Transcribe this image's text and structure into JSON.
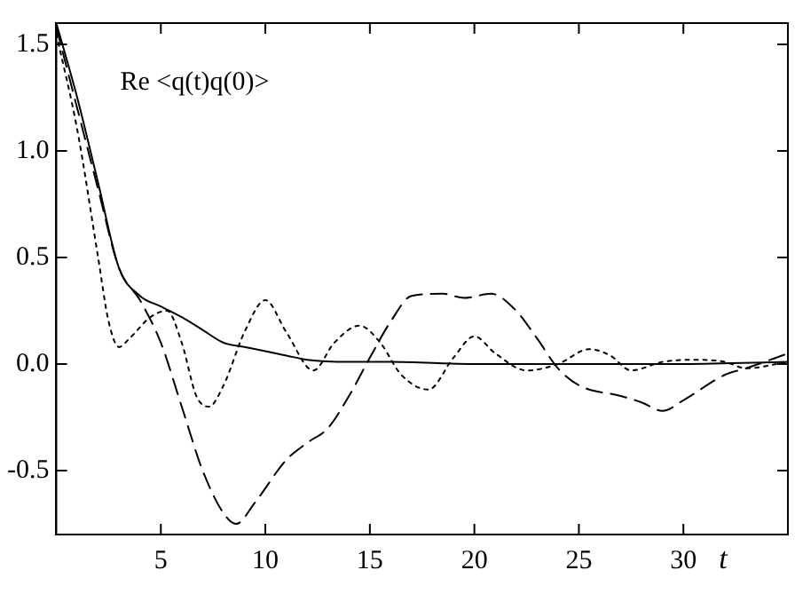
{
  "chart_data": {
    "type": "line",
    "xlabel": "t",
    "annotations": [
      "Re <q(t)q(0)>"
    ],
    "xlim": [
      0,
      35
    ],
    "xticks": [
      5,
      10,
      15,
      20,
      25,
      30
    ],
    "ylim": [
      -0.8,
      1.6
    ],
    "yticks": [
      -0.5,
      {
        "value": 0,
        "label": "0.0"
      },
      0.5,
      {
        "value": 1,
        "label": "1.0"
      },
      1.5
    ],
    "grid": false,
    "legend": false,
    "marker": "none",
    "series": [
      {
        "color": "#000000",
        "line_style": "solid",
        "x": [
          0,
          1,
          2,
          3,
          4,
          5,
          6,
          7,
          8,
          9,
          10,
          11,
          12,
          14,
          16,
          20,
          25,
          30,
          35
        ],
        "values": [
          1.6,
          1.25,
          0.85,
          0.45,
          0.32,
          0.27,
          0.22,
          0.16,
          0.1,
          0.08,
          0.06,
          0.04,
          0.02,
          0.01,
          0.01,
          0,
          0,
          0,
          0.01
        ]
      },
      {
        "color": "#000000",
        "line_style": "dashed",
        "x": [
          0,
          1,
          2,
          3,
          4,
          5,
          6,
          7,
          8,
          8.6,
          9.5,
          11,
          12,
          13,
          14,
          15,
          16,
          17,
          18.5,
          19.5,
          20.8,
          22,
          23,
          24,
          25,
          27,
          28,
          29,
          30,
          32,
          33,
          35
        ],
        "values": [
          1.58,
          1.2,
          0.82,
          0.45,
          0.3,
          0.1,
          -0.2,
          -0.5,
          -0.7,
          -0.75,
          -0.65,
          -0.45,
          -0.37,
          -0.3,
          -0.15,
          0.03,
          0.2,
          0.32,
          0.33,
          0.31,
          0.33,
          0.25,
          0.12,
          -0.02,
          -0.1,
          -0.15,
          -0.18,
          -0.22,
          -0.17,
          -0.05,
          -0.02,
          0.05
        ]
      },
      {
        "color": "#000000",
        "line_style": "dotted",
        "x": [
          0,
          1,
          2,
          2.5,
          3,
          3.5,
          4.5,
          5.3,
          6,
          6.7,
          7.3,
          8,
          9,
          10,
          11,
          12.3,
          13.3,
          14.5,
          15.5,
          16.5,
          17.8,
          19,
          20,
          21,
          22.5,
          24,
          25.5,
          26.5,
          27.5,
          29,
          30.5,
          32,
          33,
          35
        ],
        "values": [
          1.55,
          1.1,
          0.5,
          0.2,
          0.08,
          0.12,
          0.22,
          0.25,
          0.1,
          -0.15,
          -0.2,
          -0.1,
          0.15,
          0.3,
          0.15,
          -0.03,
          0.1,
          0.18,
          0.1,
          -0.05,
          -0.12,
          0.03,
          0.13,
          0.05,
          -0.03,
          0,
          0.07,
          0.04,
          -0.03,
          0.01,
          0.02,
          0.01,
          -0.02,
          0.01
        ]
      }
    ]
  }
}
